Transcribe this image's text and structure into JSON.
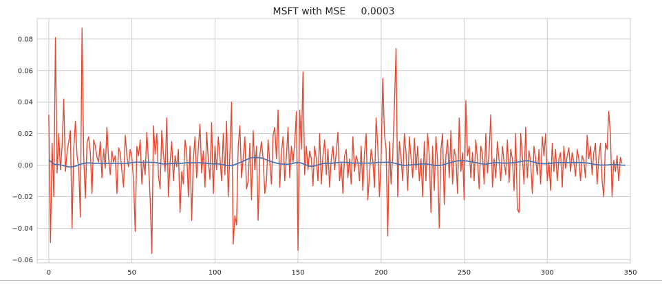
{
  "chart_data": {
    "type": "line",
    "title": "MSFT with MSE     0.0003",
    "xlabel": "",
    "ylabel": "",
    "xlim": [
      -7,
      350
    ],
    "ylim": [
      -0.062,
      0.093
    ],
    "xticks": [
      0,
      50,
      100,
      150,
      200,
      250,
      300,
      350
    ],
    "yticks": [
      -0.06,
      -0.04,
      -0.02,
      0.0,
      0.02,
      0.04,
      0.06,
      0.08
    ],
    "xtick_labels": [
      "0",
      "50",
      "100",
      "150",
      "200",
      "250",
      "300",
      "350"
    ],
    "ytick_labels": [
      "−0.06",
      "−0.04",
      "−0.02",
      "0.00",
      "0.02",
      "0.04",
      "0.06",
      "0.08"
    ],
    "grid": true,
    "series": [
      {
        "name": "",
        "color": "#e24a33",
        "values": [
          0.032,
          -0.049,
          0.014,
          -0.02,
          0.081,
          -0.005,
          0.02,
          -0.003,
          0.012,
          0.042,
          -0.004,
          0.008,
          0.015,
          0.022,
          -0.04,
          0.01,
          0.028,
          0.006,
          -0.002,
          -0.033,
          0.087,
          0.006,
          -0.021,
          0.014,
          0.018,
          0.008,
          -0.018,
          0.016,
          0.012,
          0.005,
          0.002,
          0.015,
          -0.008,
          0.01,
          -0.002,
          0.024,
          0.004,
          -0.006,
          0.009,
          0.002,
          0.006,
          -0.018,
          0.011,
          0.008,
          -0.004,
          -0.014,
          0.019,
          0.006,
          -0.001,
          0.01,
          0.005,
          -0.01,
          -0.042,
          0.012,
          0.006,
          0.016,
          -0.012,
          0.003,
          -0.006,
          0.021,
          0.002,
          -0.021,
          -0.056,
          0.025,
          0.007,
          0.02,
          -0.007,
          -0.015,
          0.022,
          0.007,
          -0.004,
          0.03,
          -0.02,
          0.002,
          0.015,
          -0.01,
          0.006,
          -0.001,
          0.01,
          -0.03,
          -0.004,
          -0.012,
          0.016,
          0.008,
          -0.02,
          0.012,
          -0.035,
          0.004,
          0.018,
          -0.008,
          0.011,
          0.026,
          -0.005,
          0.009,
          -0.014,
          0.021,
          0.003,
          -0.009,
          0.027,
          -0.018,
          0.012,
          -0.003,
          0.018,
          0.005,
          -0.01,
          0.02,
          -0.006,
          0.028,
          -0.02,
          0.008,
          0.04,
          -0.05,
          -0.032,
          -0.038,
          0.012,
          0.025,
          -0.008,
          0.004,
          0.018,
          -0.015,
          -0.01,
          0.014,
          -0.022,
          0.022,
          -0.003,
          0.012,
          -0.035,
          0.006,
          0.015,
          0.004,
          -0.018,
          -0.01,
          0.016,
          0.002,
          -0.012,
          0.019,
          0.024,
          0.004,
          0.035,
          -0.014,
          0.008,
          0.018,
          -0.01,
          0.006,
          0.024,
          -0.008,
          0.012,
          0.002,
          0.014,
          0.034,
          -0.054,
          0.035,
          0.01,
          0.059,
          -0.006,
          0.012,
          -0.003,
          0.009,
          0.004,
          -0.013,
          0.012,
          0.004,
          -0.01,
          0.02,
          -0.012,
          0.006,
          0.016,
          -0.006,
          0.01,
          -0.014,
          0.004,
          0.012,
          -0.003,
          0.008,
          0.021,
          -0.01,
          0.002,
          -0.018,
          0.006,
          0.01,
          -0.008,
          0.004,
          -0.012,
          0.018,
          -0.004,
          0.006,
          0.002,
          -0.01,
          0.012,
          -0.016,
          0.008,
          0.02,
          -0.022,
          -0.006,
          0.01,
          0.003,
          -0.014,
          0.03,
          0.012,
          -0.02,
          0.004,
          0.055,
          0.02,
          0.01,
          -0.045,
          0.015,
          -0.012,
          0.007,
          0.038,
          0.074,
          -0.02,
          0.015,
          0.005,
          -0.01,
          0.02,
          0.008,
          -0.016,
          0.018,
          0.005,
          -0.008,
          0.017,
          -0.003,
          0.012,
          -0.01,
          0.004,
          -0.02,
          0.015,
          -0.01,
          0.02,
          0.006,
          -0.03,
          0.012,
          -0.016,
          0.018,
          0.002,
          -0.04,
          0.01,
          0.02,
          -0.025,
          0.006,
          0.016,
          -0.008,
          0.022,
          -0.012,
          0.01,
          0.005,
          -0.018,
          0.03,
          -0.004,
          0.008,
          -0.022,
          0.041,
          0.006,
          0.012,
          -0.008,
          0.008,
          -0.01,
          0.016,
          0.004,
          -0.015,
          0.012,
          0.007,
          -0.012,
          0.02,
          -0.005,
          0.009,
          0.032,
          -0.014,
          0.004,
          -0.008,
          0.015,
          0.003,
          -0.01,
          0.012,
          0.002,
          -0.006,
          0.016,
          -0.011,
          0.01,
          0.004,
          -0.016,
          0.02,
          -0.028,
          -0.03,
          0.02,
          0.006,
          -0.012,
          0.024,
          -0.008,
          0.009,
          0.002,
          -0.018,
          0.012,
          0.004,
          -0.006,
          0.01,
          -0.012,
          0.018,
          0.006,
          0.02,
          -0.01,
          0.002,
          -0.016,
          0.014,
          -0.004,
          0.01,
          -0.01,
          0.004,
          0.008,
          -0.014,
          0.012,
          -0.002,
          0.006,
          0.011,
          -0.004,
          0.008,
          0.002,
          -0.007,
          0.01,
          0.004,
          -0.01,
          0.006,
          0.003,
          -0.008,
          0.019,
          0.004,
          0.012,
          -0.006,
          0.008,
          0.014,
          -0.012,
          0.005,
          0.014,
          -0.01,
          -0.02,
          0.014,
          0.01,
          0.034,
          0.02,
          -0.02,
          0.003,
          -0.004,
          0.006,
          -0.01,
          0.005,
          0.001
        ]
      },
      {
        "name": "",
        "color": "#4c72b0",
        "values": [
          0.0035,
          0.0025,
          0.0015,
          0.0008,
          0.0005,
          0.0004,
          0.0003,
          0.0002,
          0.0,
          -0.0003,
          -0.0006,
          -0.0009,
          -0.0011,
          -0.0012,
          -0.0011,
          -0.0009,
          -0.0006,
          -0.0002,
          0.0002,
          0.0006,
          0.0009,
          0.0011,
          0.0013,
          0.0014,
          0.0014,
          0.0014,
          0.0013,
          0.0012,
          0.0012,
          0.0012,
          0.0012,
          0.0012,
          0.0012,
          0.0012,
          0.0012,
          0.0012,
          0.0012,
          0.0012,
          0.0012,
          0.0012,
          0.0012,
          0.0012,
          0.0012,
          0.0012,
          0.0012,
          0.0012,
          0.0012,
          0.0012,
          0.0013,
          0.0014,
          0.0016,
          0.0017,
          0.0018,
          0.0019,
          0.0019,
          0.0019,
          0.0018,
          0.0018,
          0.0018,
          0.0018,
          0.0018,
          0.0018,
          0.0018,
          0.0018,
          0.0017,
          0.0015,
          0.0013,
          0.0011,
          0.0009,
          0.0008,
          0.0008,
          0.0008,
          0.0009,
          0.001,
          0.0011,
          0.0011,
          0.0012,
          0.0012,
          0.0012,
          0.0012,
          0.0012,
          0.0013,
          0.0014,
          0.0015,
          0.0015,
          0.0015,
          0.0015,
          0.0015,
          0.0015,
          0.0015,
          0.0015,
          0.0015,
          0.0015,
          0.0014,
          0.0013,
          0.0012,
          0.0011,
          0.001,
          0.0009,
          0.0008,
          0.0008,
          0.0008,
          0.0008,
          0.0007,
          0.0005,
          0.0003,
          0.0001,
          -0.0001,
          -0.0002,
          -0.0002,
          -0.0001,
          0.0,
          0.0004,
          0.0008,
          0.0012,
          0.0016,
          0.002,
          0.0025,
          0.003,
          0.0035,
          0.004,
          0.0044,
          0.0047,
          0.0048,
          0.0048,
          0.0048,
          0.0048,
          0.0047,
          0.0045,
          0.0042,
          0.0038,
          0.0034,
          0.003,
          0.0026,
          0.0022,
          0.0019,
          0.0016,
          0.0013,
          0.0011,
          0.0009,
          0.0008,
          0.0007,
          0.0006,
          0.0006,
          0.0006,
          0.0007,
          0.0009,
          0.0012,
          0.0014,
          0.0016,
          0.0017,
          0.0016,
          0.0013,
          0.0009,
          0.0005,
          0.0001,
          -0.0003,
          -0.0006,
          -0.0007,
          -0.0006,
          -0.0004,
          -0.0001,
          0.0002,
          0.0005,
          0.0008,
          0.001,
          0.0011,
          0.0012,
          0.0012,
          0.0012,
          0.0012,
          0.0013,
          0.0014,
          0.0015,
          0.0016,
          0.0017,
          0.0018,
          0.0018,
          0.0018,
          0.0017,
          0.0016,
          0.0015,
          0.0014,
          0.0013,
          0.0013,
          0.0013,
          0.0013,
          0.0013,
          0.0013,
          0.0013,
          0.0013,
          0.0013,
          0.0013,
          0.0013,
          0.0013,
          0.0014,
          0.0015,
          0.0016,
          0.0017,
          0.0018,
          0.0018,
          0.0018,
          0.0018,
          0.0018,
          0.0018,
          0.0018,
          0.0017,
          0.0015,
          0.0013,
          0.001,
          0.0007,
          0.0004,
          0.0002,
          0.0,
          -0.0001,
          -0.0001,
          0.0,
          0.0001,
          0.0002,
          0.0003,
          0.0004,
          0.0005,
          0.0006,
          0.0007,
          0.0008,
          0.0008,
          0.0008,
          0.0008,
          0.0007,
          0.0005,
          0.0003,
          0.0001,
          -0.0001,
          -0.0002,
          -0.0002,
          -0.0001,
          0.0,
          0.0002,
          0.0005,
          0.0008,
          0.0011,
          0.0014,
          0.0017,
          0.002,
          0.0023,
          0.0025,
          0.0027,
          0.0028,
          0.0028,
          0.0028,
          0.0028,
          0.0027,
          0.0026,
          0.0024,
          0.0022,
          0.002,
          0.0018,
          0.0016,
          0.0014,
          0.0012,
          0.001,
          0.0008,
          0.0007,
          0.0007,
          0.0008,
          0.001,
          0.0012,
          0.0014,
          0.0015,
          0.0016,
          0.0016,
          0.0015,
          0.0014,
          0.0013,
          0.0013,
          0.0013,
          0.0013,
          0.0014,
          0.0014,
          0.0015,
          0.0016,
          0.0017,
          0.0019,
          0.0021,
          0.0023,
          0.0025,
          0.0027,
          0.0028,
          0.0028,
          0.0027,
          0.0025,
          0.0022,
          0.0019,
          0.0016,
          0.0013,
          0.0011,
          0.001,
          0.0009,
          0.0009,
          0.0009,
          0.001,
          0.0011,
          0.0012,
          0.0013,
          0.0014,
          0.0015,
          0.0016,
          0.0016,
          0.0016,
          0.0016,
          0.0016,
          0.0016,
          0.0016,
          0.0016,
          0.0016,
          0.0016,
          0.0016,
          0.0016,
          0.0016,
          0.0016,
          0.0016,
          0.0016,
          0.0016,
          0.0015,
          0.0014,
          0.0012,
          0.001,
          0.0008,
          0.0006,
          0.0004,
          0.0003,
          0.0002,
          0.0001,
          0.0001,
          0.0001,
          0.0001,
          0.0001,
          0.0002,
          0.0003,
          0.0004,
          0.0004,
          0.0004,
          0.0003,
          0.0002,
          0.0001,
          0.0,
          0.0,
          0.0
        ]
      }
    ]
  }
}
